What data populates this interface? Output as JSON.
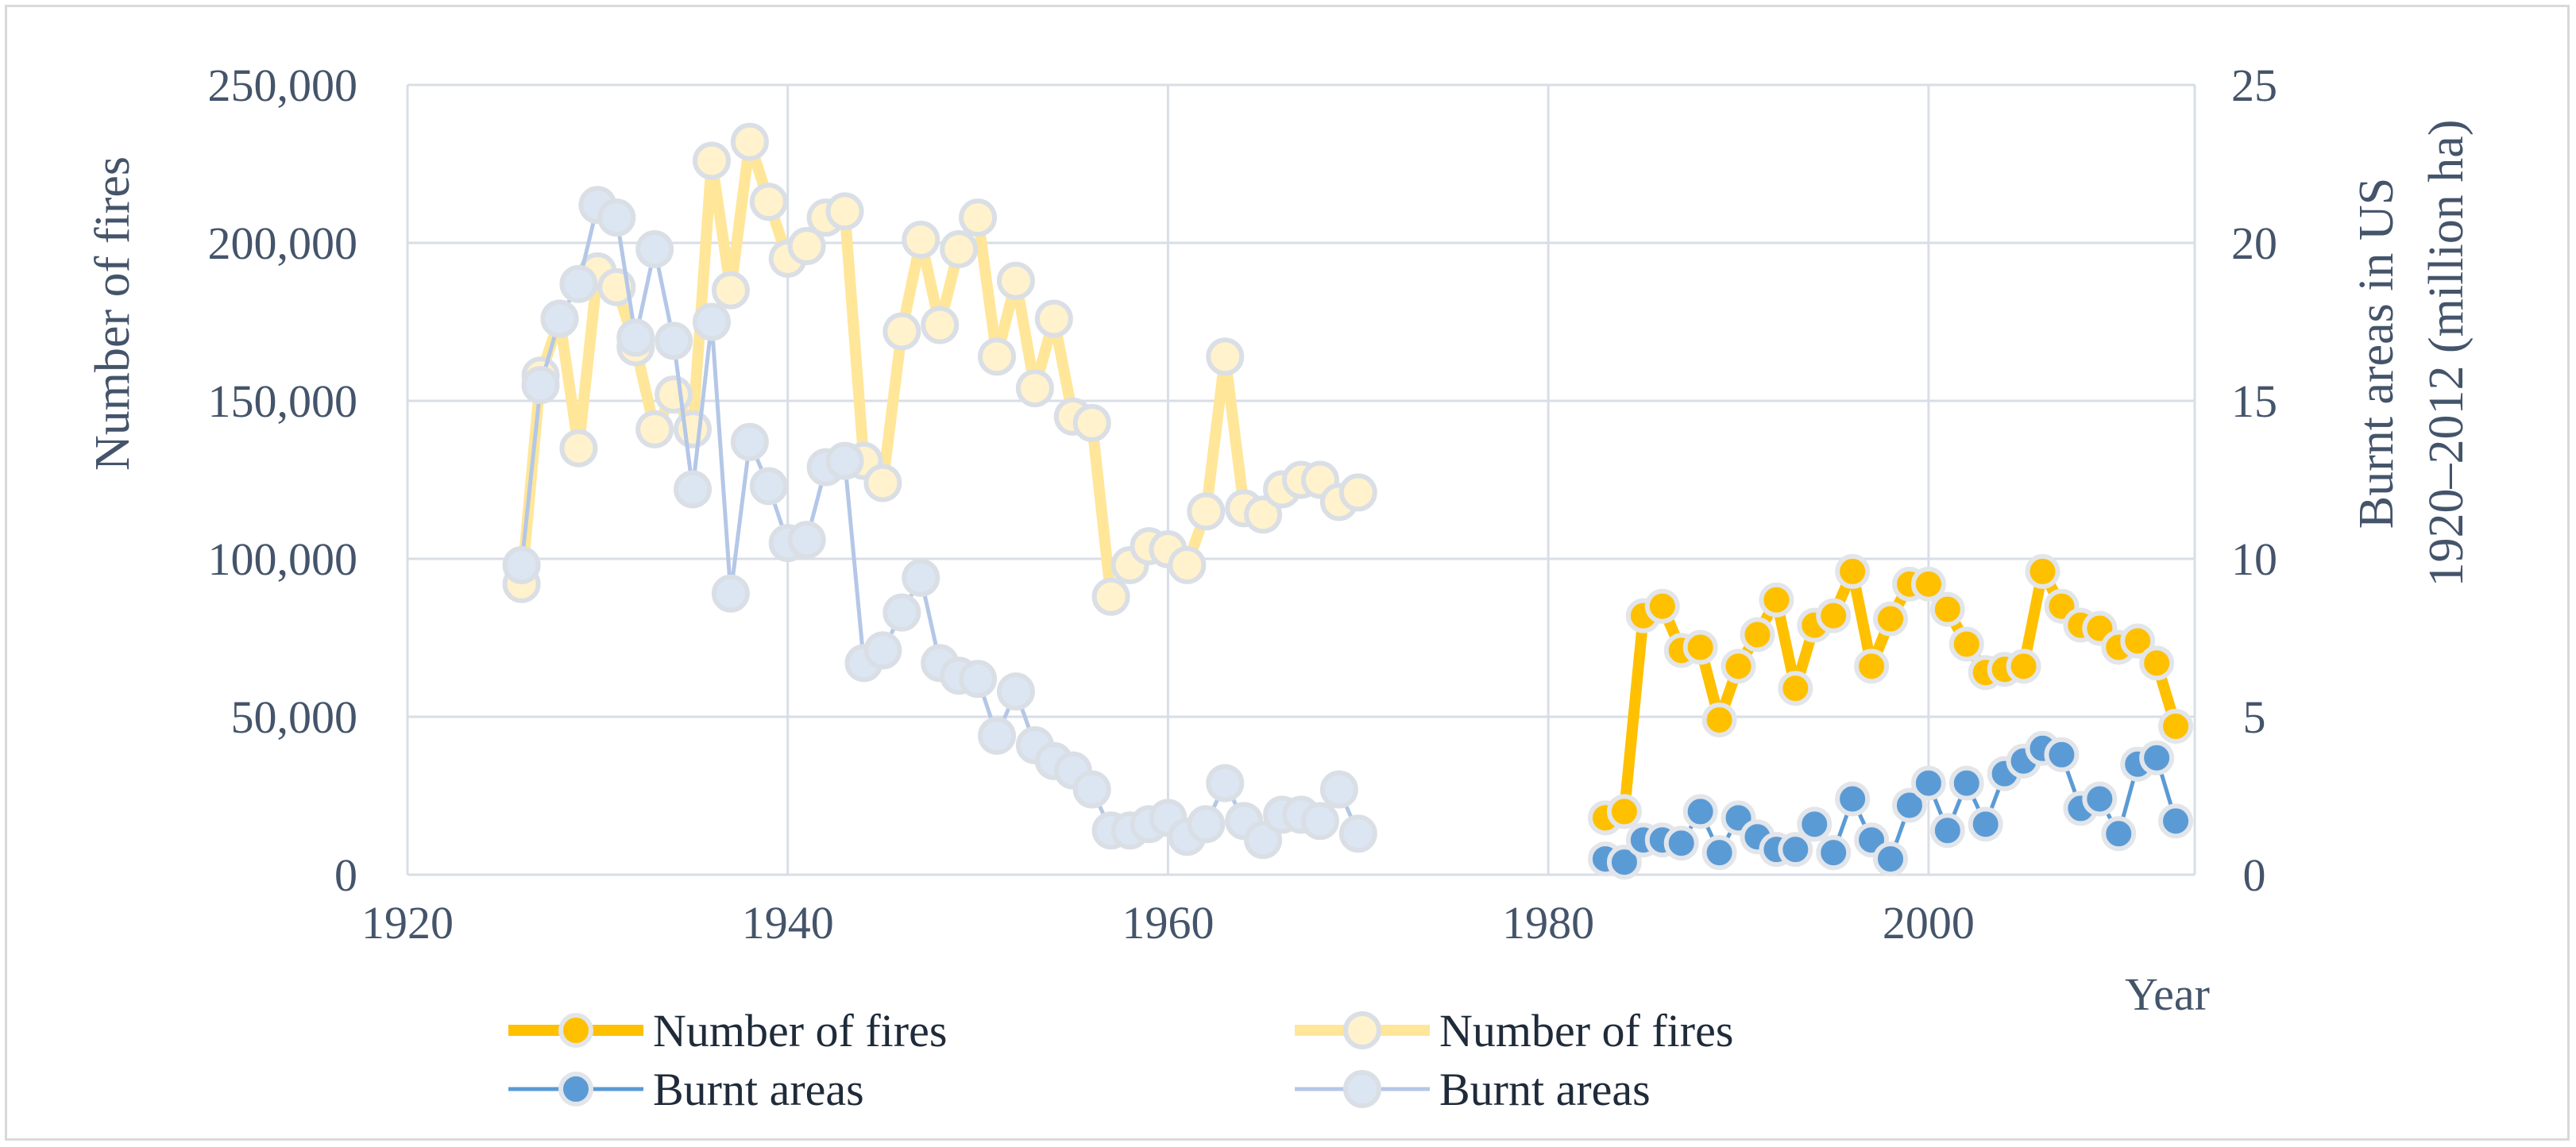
{
  "chart_data": {
    "type": "line",
    "title": "",
    "xlabel": "Year",
    "ylabel_left": "Number of fires",
    "ylabel_right_line1": "Burnt areas in US",
    "ylabel_right_line2": "1920–2012 (million ha)",
    "xlim": [
      1920,
      2014
    ],
    "ylim_left": [
      0,
      250000
    ],
    "ylim_right": [
      0,
      25
    ],
    "x_ticks": [
      1920,
      1940,
      1960,
      1980,
      2000
    ],
    "y_left_ticks": [
      0,
      50000,
      100000,
      150000,
      200000,
      250000
    ],
    "y_left_tick_labels": [
      "0",
      "50,000",
      "100,000",
      "150,000",
      "200,000",
      "250,000"
    ],
    "y_right_ticks": [
      0,
      5,
      10,
      15,
      20,
      25
    ],
    "y_right_tick_labels": [
      "0",
      "5",
      "10",
      "15",
      "20",
      "25"
    ],
    "grid": true,
    "legend_position": "bottom",
    "colors": {
      "fires_recent": "#ffc000",
      "fires_historic": "#ffe699",
      "burnt_recent": "#5b9bd5",
      "burnt_historic": "#b4c7e7",
      "marker_edge_light": "#dadfe6",
      "grid": "#d9dee6",
      "axis_text": "#44546a"
    },
    "series": [
      {
        "name": "Number of fires",
        "key": "fires_recent",
        "axis": "left",
        "style": "bold",
        "x": [
          1983,
          1984,
          1985,
          1986,
          1987,
          1988,
          1989,
          1990,
          1991,
          1992,
          1993,
          1994,
          1995,
          1996,
          1997,
          1998,
          1999,
          2000,
          2001,
          2002,
          2003,
          2004,
          2005,
          2006,
          2007,
          2008,
          2009,
          2010,
          2011,
          2012,
          2013
        ],
        "y": [
          18000,
          20000,
          82000,
          85000,
          71000,
          72000,
          49000,
          66000,
          76000,
          87000,
          59000,
          79000,
          82000,
          96000,
          66000,
          81000,
          92000,
          92000,
          84000,
          73000,
          64000,
          65000,
          66000,
          96000,
          85000,
          79000,
          78000,
          72000,
          74000,
          67000,
          47000
        ]
      },
      {
        "name": "Number of fires",
        "key": "fires_historic",
        "axis": "left",
        "style": "light",
        "x": [
          1926,
          1927,
          1928,
          1929,
          1930,
          1931,
          1932,
          1933,
          1934,
          1935,
          1936,
          1937,
          1938,
          1939,
          1940,
          1941,
          1942,
          1943,
          1944,
          1945,
          1946,
          1947,
          1948,
          1949,
          1950,
          1951,
          1952,
          1953,
          1954,
          1955,
          1956,
          1957,
          1958,
          1959,
          1960,
          1961,
          1962,
          1963,
          1964,
          1965,
          1966,
          1967,
          1968,
          1969,
          1970
        ],
        "y": [
          92000,
          158000,
          176000,
          135000,
          191000,
          186000,
          167000,
          141000,
          152000,
          141000,
          226000,
          185000,
          232000,
          213000,
          195000,
          199000,
          208000,
          210000,
          131000,
          124000,
          172000,
          201000,
          174000,
          198000,
          208000,
          164000,
          188000,
          154000,
          176000,
          145000,
          143000,
          88000,
          98000,
          104000,
          103000,
          98000,
          115000,
          164000,
          116000,
          114000,
          122000,
          125000,
          125000,
          118000,
          121000
        ]
      },
      {
        "name": "Burnt areas",
        "key": "burnt_recent",
        "axis": "right",
        "style": "bold",
        "x": [
          1983,
          1984,
          1985,
          1986,
          1987,
          1988,
          1989,
          1990,
          1991,
          1992,
          1993,
          1994,
          1995,
          1996,
          1997,
          1998,
          1999,
          2000,
          2001,
          2002,
          2003,
          2004,
          2005,
          2006,
          2007,
          2008,
          2009,
          2010,
          2011,
          2012,
          2013
        ],
        "y": [
          0.5,
          0.4,
          1.1,
          1.1,
          1.0,
          2.0,
          0.7,
          1.8,
          1.2,
          0.8,
          0.8,
          1.6,
          0.7,
          2.4,
          1.1,
          0.5,
          2.2,
          2.9,
          1.4,
          2.9,
          1.6,
          3.2,
          3.6,
          4.0,
          3.8,
          2.1,
          2.4,
          1.3,
          3.5,
          3.7,
          1.7
        ]
      },
      {
        "name": "Burnt areas",
        "key": "burnt_historic",
        "axis": "right",
        "style": "light",
        "x": [
          1926,
          1927,
          1928,
          1929,
          1930,
          1931,
          1932,
          1933,
          1934,
          1935,
          1936,
          1937,
          1938,
          1939,
          1940,
          1941,
          1942,
          1943,
          1944,
          1945,
          1946,
          1947,
          1948,
          1949,
          1950,
          1951,
          1952,
          1953,
          1954,
          1955,
          1956,
          1957,
          1958,
          1959,
          1960,
          1961,
          1962,
          1963,
          1964,
          1965,
          1966,
          1967,
          1968,
          1969,
          1970
        ],
        "y": [
          9.8,
          15.5,
          17.6,
          18.7,
          21.2,
          20.8,
          17.0,
          19.8,
          16.9,
          12.2,
          17.5,
          8.9,
          13.7,
          12.3,
          10.5,
          10.6,
          12.9,
          13.1,
          6.7,
          7.1,
          8.3,
          9.4,
          6.7,
          6.3,
          6.2,
          4.4,
          5.8,
          4.1,
          3.6,
          3.3,
          2.7,
          1.4,
          1.4,
          1.6,
          1.8,
          1.2,
          1.6,
          2.9,
          1.7,
          1.1,
          1.9,
          1.9,
          1.7,
          2.7,
          1.3
        ]
      }
    ],
    "legend": [
      {
        "label": "Number of fires",
        "key": "fires_recent"
      },
      {
        "label": "Number of fires",
        "key": "fires_historic"
      },
      {
        "label": "Burnt areas",
        "key": "burnt_recent"
      },
      {
        "label": "Burnt areas",
        "key": "burnt_historic"
      }
    ]
  }
}
